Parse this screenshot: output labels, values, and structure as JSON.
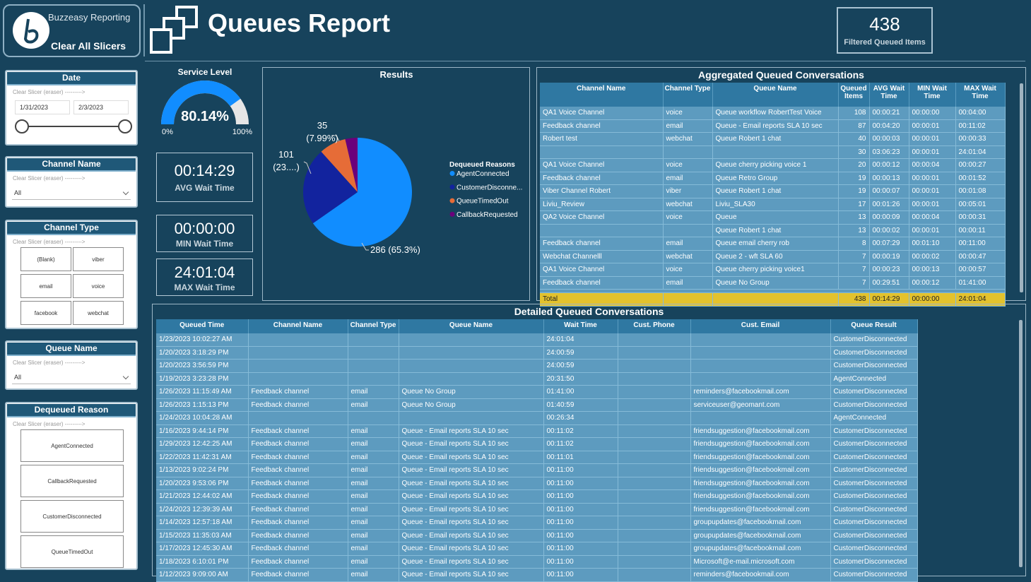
{
  "header": {
    "brand": "Buzzeasy Reporting",
    "clear": "Clear All Slicers",
    "title": "Queues Report",
    "card_value": 438,
    "card_label": "Filtered Queued Items"
  },
  "slicers": {
    "date": {
      "title": "Date",
      "hint": "Clear Slicer (eraser) --------->",
      "from": "1/31/2023",
      "to": "2/3/2023"
    },
    "channel_name": {
      "title": "Channel Name",
      "hint": "Clear Slicer (eraser) --------->",
      "selected": "All"
    },
    "channel_type": {
      "title": "Channel Type",
      "hint": "Clear Slicer (eraser) --------->",
      "options": [
        "(Blank)",
        "viber",
        "email",
        "voice",
        "facebook",
        "webchat"
      ]
    },
    "queue_name": {
      "title": "Queue Name",
      "hint": "Clear Slicer (eraser) --------->",
      "selected": "All"
    },
    "dequeued_reason": {
      "title": "Dequeued Reason",
      "hint": "Clear Slicer (eraser) --------->",
      "options": [
        "AgentConnected",
        "CallbackRequested",
        "CustomerDisconnected",
        "QueueTimedOut"
      ]
    }
  },
  "kpis": [
    {
      "value": "00:14:29",
      "label": "AVG Wait Time"
    },
    {
      "value": "00:00:00",
      "label": "MIN Wait Time"
    },
    {
      "value": "24:01:04",
      "label": "MAX Wait Time"
    }
  ],
  "chart_data": [
    {
      "type": "gauge",
      "title": "Service Level",
      "values": [
        80.14
      ],
      "value_labels": [
        "80.14%"
      ],
      "ylim": [
        0,
        100
      ],
      "yticks": [
        {
          "value": 0,
          "label": "0%"
        },
        {
          "value": 100,
          "label": "100%"
        }
      ],
      "color": "#118dff",
      "track_color": "#e6e6e6"
    },
    {
      "type": "pie",
      "title": "Results",
      "legend_title": "Dequeued Reasons",
      "categories": [
        "AgentConnected",
        "CustomerDisconne...",
        "QueueTimedOut",
        "CallbackRequested"
      ],
      "values": [
        286,
        101,
        35,
        16
      ],
      "value_labels": [
        "286 (65.3%)",
        "101 (23....)",
        "35 (7.99%)",
        null
      ],
      "colors": [
        "#118dff",
        "#12239e",
        "#e66c37",
        "#6b007b"
      ]
    }
  ],
  "aggregated": {
    "title": "Aggregated Queued Conversations",
    "columns": [
      "Channel Name",
      "Channel Type",
      "Queue Name",
      "Queued Items",
      "AVG Wait Time",
      "MIN Wait Time",
      "MAX Wait Time"
    ],
    "rows": [
      [
        "QA1 Voice Channel",
        "voice",
        "Queue workflow RobertTest Voice",
        108,
        "00:00:21",
        "00:00:00",
        "00:04:00"
      ],
      [
        "Feedback channel",
        "email",
        "Queue - Email reports SLA 10 sec",
        87,
        "00:04:20",
        "00:00:01",
        "00:11:02"
      ],
      [
        "Robert test",
        "webchat",
        "Queue Robert 1 chat",
        40,
        "00:00:03",
        "00:00:01",
        "00:00:33"
      ],
      [
        null,
        null,
        null,
        30,
        "03:06:23",
        "00:00:01",
        "24:01:04"
      ],
      [
        "QA1 Voice Channel",
        "voice",
        "Queue cherry picking voice 1",
        20,
        "00:00:12",
        "00:00:04",
        "00:00:27"
      ],
      [
        "Feedback channel",
        "email",
        "Queue Retro Group",
        19,
        "00:00:13",
        "00:00:01",
        "00:01:52"
      ],
      [
        "Viber Channel Robert",
        "viber",
        "Queue Robert 1 chat",
        19,
        "00:00:07",
        "00:00:01",
        "00:01:08"
      ],
      [
        "Liviu_Review",
        "webchat",
        "Liviu_SLA30",
        17,
        "00:01:26",
        "00:00:01",
        "00:05:01"
      ],
      [
        "QA2 Voice Channel",
        "voice",
        "Queue",
        13,
        "00:00:09",
        "00:00:04",
        "00:00:31"
      ],
      [
        null,
        null,
        "Queue Robert 1 chat",
        13,
        "00:00:02",
        "00:00:01",
        "00:00:11"
      ],
      [
        "Feedback channel",
        "email",
        "Queue email cherry rob",
        8,
        "00:07:29",
        "00:01:10",
        "00:11:00"
      ],
      [
        "Webchat Channelll",
        "webchat",
        "Queue 2 - wft SLA 60",
        7,
        "00:00:19",
        "00:00:02",
        "00:00:47"
      ],
      [
        "QA1 Voice Channel",
        "voice",
        "Queue cherry picking voice1",
        7,
        "00:00:23",
        "00:00:13",
        "00:00:57"
      ],
      [
        "Feedback channel",
        "email",
        "Queue No Group",
        7,
        "00:29:51",
        "00:00:12",
        "01:41:00"
      ]
    ],
    "total": [
      "Total",
      null,
      null,
      438,
      "00:14:29",
      "00:00:00",
      "24:01:04"
    ]
  },
  "detailed": {
    "title": "Detailed Queued Conversations",
    "columns": [
      "Queued Time",
      "Channel Name",
      "Channel Type",
      "Queue Name",
      "Wait Time",
      "Cust. Phone",
      "Cust. Email",
      "Queue Result"
    ],
    "rows": [
      [
        "1/23/2023 10:02:27 AM",
        null,
        null,
        null,
        "24:01:04",
        null,
        null,
        "CustomerDisconnected"
      ],
      [
        "1/20/2023 3:18:29 PM",
        null,
        null,
        null,
        "24:00:59",
        null,
        null,
        "CustomerDisconnected"
      ],
      [
        "1/20/2023 3:56:59 PM",
        null,
        null,
        null,
        "24:00:59",
        null,
        null,
        "CustomerDisconnected"
      ],
      [
        "1/19/2023 3:23:28 PM",
        null,
        null,
        null,
        "20:31:50",
        null,
        null,
        "AgentConnected"
      ],
      [
        "1/26/2023 11:15:49 AM",
        "Feedback channel",
        "email",
        "Queue No Group",
        "01:41:00",
        null,
        "reminders@facebookmail.com",
        "CustomerDisconnected"
      ],
      [
        "1/26/2023 1:15:13 PM",
        "Feedback channel",
        "email",
        "Queue No Group",
        "01:40:59",
        null,
        "serviceuser@geomant.com",
        "CustomerDisconnected"
      ],
      [
        "1/24/2023 10:04:28 AM",
        null,
        null,
        null,
        "00:26:34",
        null,
        null,
        "AgentConnected"
      ],
      [
        "1/16/2023 9:44:14 PM",
        "Feedback channel",
        "email",
        "Queue - Email reports SLA 10 sec",
        "00:11:02",
        null,
        "friendsuggestion@facebookmail.com",
        "CustomerDisconnected"
      ],
      [
        "1/29/2023 12:42:25 AM",
        "Feedback channel",
        "email",
        "Queue - Email reports SLA 10 sec",
        "00:11:02",
        null,
        "friendsuggestion@facebookmail.com",
        "CustomerDisconnected"
      ],
      [
        "1/22/2023 11:42:31 AM",
        "Feedback channel",
        "email",
        "Queue - Email reports SLA 10 sec",
        "00:11:01",
        null,
        "friendsuggestion@facebookmail.com",
        "CustomerDisconnected"
      ],
      [
        "1/13/2023 9:02:24 PM",
        "Feedback channel",
        "email",
        "Queue - Email reports SLA 10 sec",
        "00:11:00",
        null,
        "friendsuggestion@facebookmail.com",
        "CustomerDisconnected"
      ],
      [
        "1/20/2023 9:53:06 PM",
        "Feedback channel",
        "email",
        "Queue - Email reports SLA 10 sec",
        "00:11:00",
        null,
        "friendsuggestion@facebookmail.com",
        "CustomerDisconnected"
      ],
      [
        "1/21/2023 12:44:02 AM",
        "Feedback channel",
        "email",
        "Queue - Email reports SLA 10 sec",
        "00:11:00",
        null,
        "friendsuggestion@facebookmail.com",
        "CustomerDisconnected"
      ],
      [
        "1/24/2023 12:39:39 AM",
        "Feedback channel",
        "email",
        "Queue - Email reports SLA 10 sec",
        "00:11:00",
        null,
        "friendsuggestion@facebookmail.com",
        "CustomerDisconnected"
      ],
      [
        "1/14/2023 12:57:18 AM",
        "Feedback channel",
        "email",
        "Queue - Email reports SLA 10 sec",
        "00:11:00",
        null,
        "groupupdates@facebookmail.com",
        "CustomerDisconnected"
      ],
      [
        "1/15/2023 11:35:03 AM",
        "Feedback channel",
        "email",
        "Queue - Email reports SLA 10 sec",
        "00:11:00",
        null,
        "groupupdates@facebookmail.com",
        "CustomerDisconnected"
      ],
      [
        "1/17/2023 12:45:30 AM",
        "Feedback channel",
        "email",
        "Queue - Email reports SLA 10 sec",
        "00:11:00",
        null,
        "groupupdates@facebookmail.com",
        "CustomerDisconnected"
      ],
      [
        "1/18/2023 6:10:01 PM",
        "Feedback channel",
        "email",
        "Queue - Email reports SLA 10 sec",
        "00:11:00",
        null,
        "Microsoft@e-mail.microsoft.com",
        "CustomerDisconnected"
      ],
      [
        "1/12/2023 9:09:00 AM",
        "Feedback channel",
        "email",
        "Queue - Email reports SLA 10 sec",
        "00:11:00",
        null,
        "reminders@facebookmail.com",
        "CustomerDisconnected"
      ]
    ]
  }
}
